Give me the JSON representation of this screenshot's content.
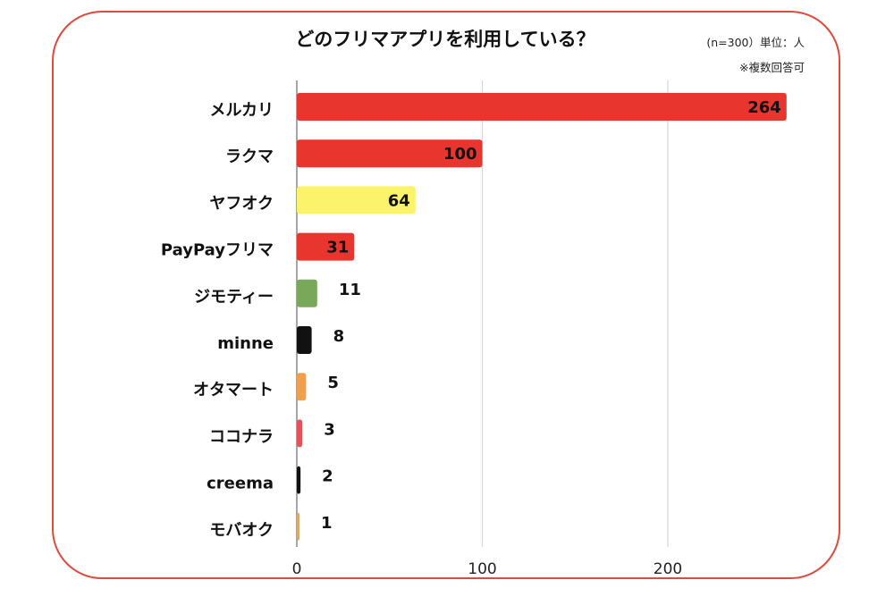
{
  "chart_data": {
    "type": "bar",
    "orientation": "horizontal",
    "title": "どのフリマアプリを利用している？",
    "note_sample": "(n=300）単位：人",
    "note_multi": "※複数回答可",
    "categories": [
      "メルカリ",
      "ラクマ",
      "ヤフオク",
      "PayPayフリマ",
      "ジモティー",
      "minne",
      "オタマート",
      "ココナラ",
      "creema",
      "モバオク"
    ],
    "values": [
      264,
      100,
      64,
      31,
      11,
      8,
      5,
      3,
      2,
      1
    ],
    "colors": [
      "#e8352d",
      "#e8352d",
      "#fbf36a",
      "#e8352d",
      "#7aa85a",
      "#111111",
      "#f0a04b",
      "#e8505a",
      "#111111",
      "#d9a86a"
    ],
    "value_labels": [
      "264",
      "100",
      "64",
      "31",
      "11",
      "8",
      "5",
      "3",
      "2",
      "1"
    ],
    "xlim": [
      0,
      270
    ],
    "xticks": [
      0,
      100,
      200
    ],
    "grid": true
  },
  "colors": {
    "frame": "#e04a3c",
    "grid": "#d6d6d6",
    "axis": "#888888"
  }
}
